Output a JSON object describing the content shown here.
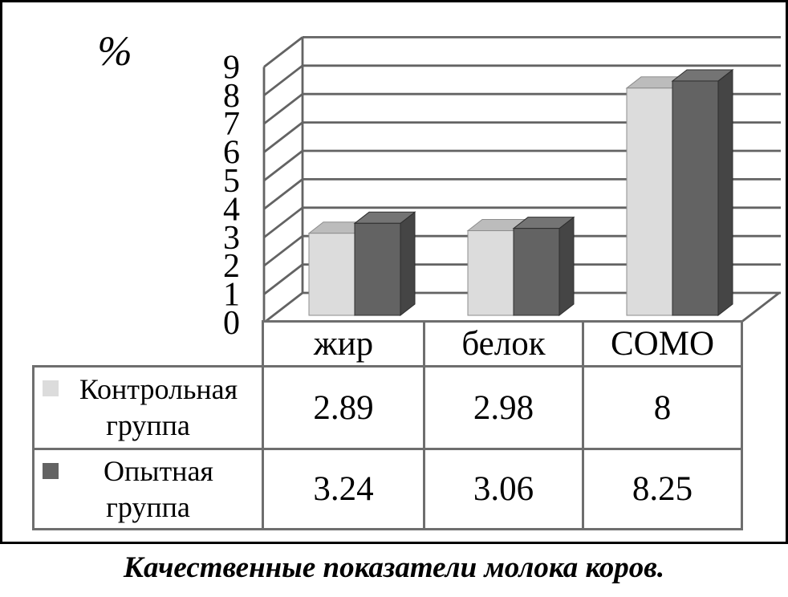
{
  "figure": {
    "caption": "Качественные показатели молока коров."
  },
  "chart": {
    "unit_label": "%"
  },
  "chart_data": {
    "type": "bar",
    "projection": "3d-column",
    "title": "",
    "xlabel": "",
    "ylabel": "%",
    "categories": [
      "жир",
      "белок",
      "СОМО"
    ],
    "series": [
      {
        "name": "Контрольная группа",
        "values": [
          2.89,
          2.98,
          8
        ],
        "color_front": "#dcdcdc",
        "color_top": "#bcbcbc",
        "color_side": "#a2a2a2",
        "edge_color": "#8d8d8d"
      },
      {
        "name": "Опытная группа",
        "values": [
          3.24,
          3.06,
          8.25
        ],
        "color_front": "#636363",
        "color_top": "#747474",
        "color_side": "#454545",
        "edge_color": "#2e2e2e"
      }
    ],
    "ylim": [
      0,
      9
    ],
    "ytick_step": 1,
    "grid": true,
    "gridline_color": "#636363",
    "legend_position": "table-left"
  },
  "table": {
    "column_headers": [
      "жир",
      "белок",
      "СОМО"
    ],
    "rows": [
      {
        "label_line1": "Контрольная",
        "label_line2": "группа",
        "values": [
          "2.89",
          "2.98",
          "8"
        ]
      },
      {
        "label_line1": "Опытная",
        "label_line2": "группа",
        "values": [
          "3.24",
          "3.06",
          "8.25"
        ]
      }
    ]
  }
}
